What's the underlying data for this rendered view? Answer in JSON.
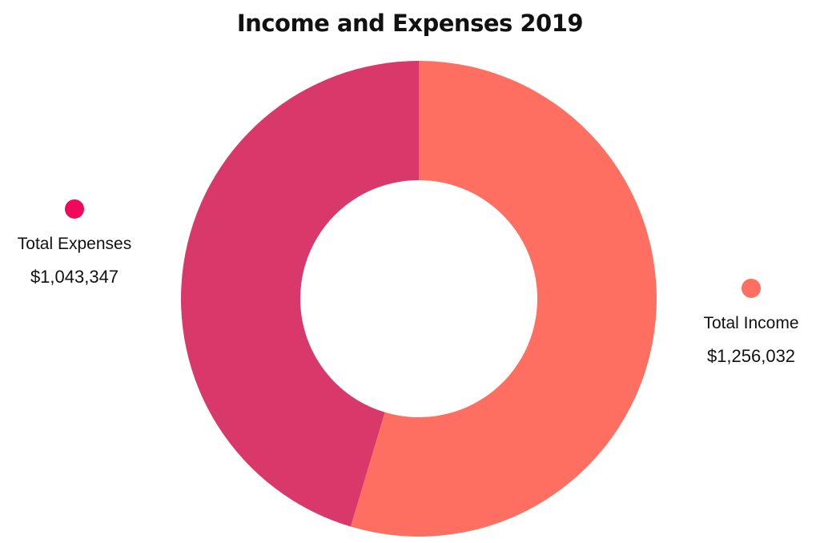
{
  "chart_data": {
    "type": "pie",
    "title": "Income and Expenses 2019",
    "categories": [
      "Total Income",
      "Total Expenses"
    ],
    "values": [
      1256032,
      1043347
    ],
    "value_labels": [
      "$1,256,032",
      "$1,043,347"
    ],
    "colors": [
      "#FF6F61",
      "#D9396A"
    ],
    "legend_dot_colors": [
      "#FF6F61",
      "#F0085C"
    ],
    "donut": true,
    "start": "top, clockwise"
  }
}
